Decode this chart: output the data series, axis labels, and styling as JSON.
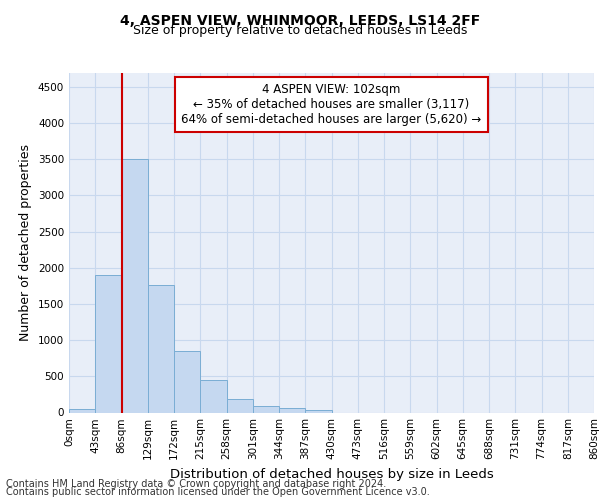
{
  "title1": "4, ASPEN VIEW, WHINMOOR, LEEDS, LS14 2FF",
  "title2": "Size of property relative to detached houses in Leeds",
  "xlabel": "Distribution of detached houses by size in Leeds",
  "ylabel": "Number of detached properties",
  "bar_values": [
    50,
    1900,
    3500,
    1760,
    850,
    450,
    185,
    95,
    60,
    35,
    0,
    0,
    0,
    0,
    0,
    0,
    0,
    0,
    0,
    0
  ],
  "x_labels": [
    "0sqm",
    "43sqm",
    "86sqm",
    "129sqm",
    "172sqm",
    "215sqm",
    "258sqm",
    "301sqm",
    "344sqm",
    "387sqm",
    "430sqm",
    "473sqm",
    "516sqm",
    "559sqm",
    "602sqm",
    "645sqm",
    "688sqm",
    "731sqm",
    "774sqm",
    "817sqm",
    "860sqm"
  ],
  "bar_color": "#c5d8f0",
  "bar_edge_color": "#7aadd4",
  "vline_color": "#cc0000",
  "vline_position": 2.0,
  "annotation_text": "4 ASPEN VIEW: 102sqm\n← 35% of detached houses are smaller (3,117)\n64% of semi-detached houses are larger (5,620) →",
  "annotation_box_edgecolor": "#cc0000",
  "ylim_max": 4700,
  "yticks": [
    0,
    500,
    1000,
    1500,
    2000,
    2500,
    3000,
    3500,
    4000,
    4500
  ],
  "grid_color": "#c8d8ee",
  "bg_color": "#e8eef8",
  "footer1": "Contains HM Land Registry data © Crown copyright and database right 2024.",
  "footer2": "Contains public sector information licensed under the Open Government Licence v3.0.",
  "title1_fontsize": 10,
  "title2_fontsize": 9,
  "axis_label_fontsize": 9,
  "tick_fontsize": 7.5,
  "annotation_fontsize": 8.5,
  "footer_fontsize": 7
}
